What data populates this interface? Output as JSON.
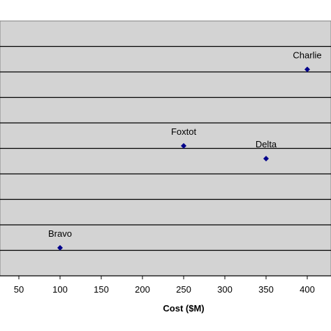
{
  "chart_data": {
    "type": "scatter",
    "title": "",
    "xlabel": "Cost ($M)",
    "ylabel": "",
    "xlim": [
      0,
      450
    ],
    "x_ticks": [
      50,
      100,
      150,
      200,
      250,
      300,
      350,
      400
    ],
    "y_gridlines": 9,
    "grid": true,
    "plot_background": "#d3d3d3",
    "marker_color": "#00008b",
    "points": [
      {
        "label": "Charlie",
        "x": 400,
        "y": 8.1
      },
      {
        "label": "Foxtot",
        "x": 250,
        "y": 5.1
      },
      {
        "label": "Delta",
        "x": 350,
        "y": 4.6
      },
      {
        "label": "Bravo",
        "x": 100,
        "y": 1.1
      }
    ],
    "ylim": [
      0,
      10
    ]
  }
}
